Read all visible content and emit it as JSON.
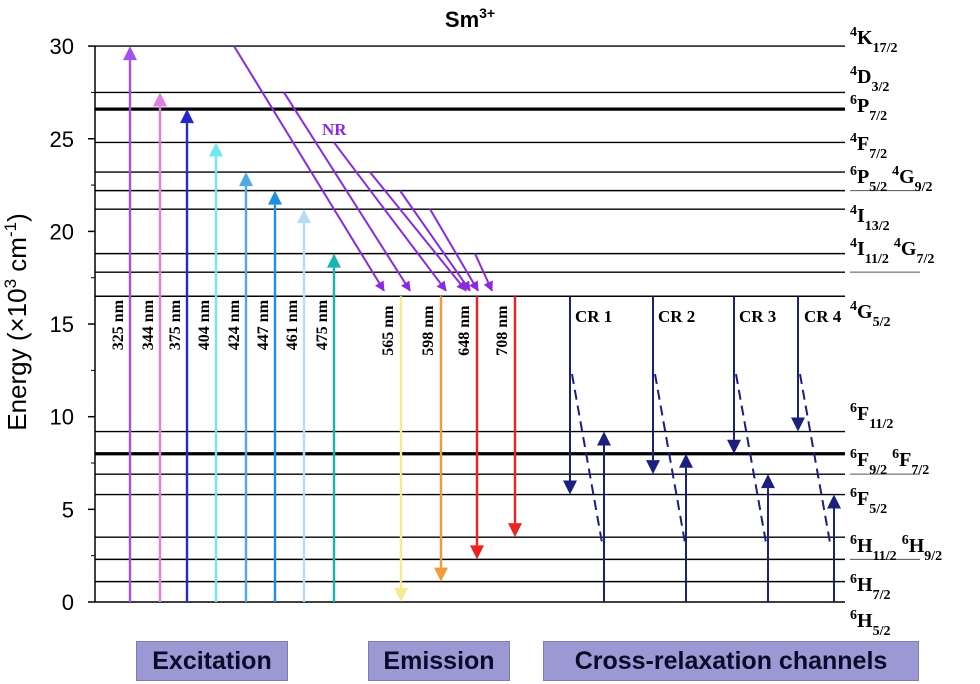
{
  "title": "Sm",
  "title_sup": "3+",
  "y_axis": {
    "label_main": "Energy (×10",
    "label_sup1": "3",
    "label_mid": " cm",
    "label_sup2": "-1",
    "label_end": ")",
    "ticks": [
      "0",
      "5",
      "10",
      "15",
      "20",
      "25",
      "30"
    ],
    "range": [
      0,
      30
    ]
  },
  "levels": [
    {
      "energy": 30.0,
      "bold": false,
      "label": "4K17/2"
    },
    {
      "energy": 27.5,
      "bold": false,
      "label": "4D3/2"
    },
    {
      "energy": 26.6,
      "bold": true,
      "label": "6P7/2"
    },
    {
      "energy": 24.8,
      "bold": false,
      "label": "4F7/2"
    },
    {
      "energy": 23.2,
      "bold": false,
      "label": "6P5/2 4G9/2"
    },
    {
      "energy": 22.2,
      "bold": false,
      "label": ""
    },
    {
      "energy": 21.2,
      "bold": false,
      "label": "4I13/2"
    },
    {
      "energy": 18.8,
      "bold": false,
      "label": "4I11/2 4G7/2"
    },
    {
      "energy": 17.8,
      "bold": false,
      "label": ""
    },
    {
      "energy": 16.5,
      "bold": false,
      "label": "4G5/2"
    },
    {
      "energy": 9.2,
      "bold": false,
      "label": "6F11/2"
    },
    {
      "energy": 8.0,
      "bold": true,
      "label": "6F9/2 6F7/2"
    },
    {
      "energy": 6.9,
      "bold": false,
      "label": ""
    },
    {
      "energy": 5.8,
      "bold": false,
      "label": "6F5/2"
    },
    {
      "energy": 3.5,
      "bold": false,
      "label": "6H11/2 6H9/2"
    },
    {
      "energy": 2.3,
      "bold": false,
      "label": ""
    },
    {
      "energy": 1.1,
      "bold": false,
      "label": "6H7/2"
    },
    {
      "energy": 0.0,
      "bold": false,
      "label": "6H5/2"
    }
  ],
  "level_labels": [
    {
      "sup": "4",
      "base": "K",
      "sub": "17/2",
      "sup2": "",
      "base2": "",
      "sub2": ""
    },
    {
      "sup": "4",
      "base": "D",
      "sub": "3/2",
      "sup2": "",
      "base2": "",
      "sub2": ""
    },
    {
      "sup": "6",
      "base": "P",
      "sub": "7/2",
      "sup2": "",
      "base2": "",
      "sub2": ""
    },
    {
      "sup": "4",
      "base": "F",
      "sub": "7/2",
      "sup2": "",
      "base2": "",
      "sub2": ""
    },
    {
      "sup": "6",
      "base": "P",
      "sub": "5/2",
      "sup2": "4",
      "base2": "G",
      "sub2": "9/2"
    },
    {
      "sup": "4",
      "base": "I",
      "sub": "13/2",
      "sup2": "",
      "base2": "",
      "sub2": ""
    },
    {
      "sup": "4",
      "base": "I",
      "sub": "11/2",
      "sup2": "4",
      "base2": "G",
      "sub2": "7/2"
    },
    {
      "sup": "4",
      "base": "G",
      "sub": "5/2",
      "sup2": "",
      "base2": "",
      "sub2": ""
    },
    {
      "sup": "6",
      "base": "F",
      "sub": "11/2",
      "sup2": "",
      "base2": "",
      "sub2": ""
    },
    {
      "sup": "6",
      "base": "F",
      "sub": "9/2",
      "sup2": "6",
      "base2": "F",
      "sub2": "7/2"
    },
    {
      "sup": "6",
      "base": "F",
      "sub": "5/2",
      "sup2": "",
      "base2": "",
      "sub2": ""
    },
    {
      "sup": "6",
      "base": "H",
      "sub": "11/2",
      "sup2": "6",
      "base2": "H",
      "sub2": "9/2"
    },
    {
      "sup": "6",
      "base": "H",
      "sub": "7/2",
      "sup2": "",
      "base2": "",
      "sub2": ""
    },
    {
      "sup": "6",
      "base": "H",
      "sub": "5/2",
      "sup2": "",
      "base2": "",
      "sub2": ""
    }
  ],
  "excitation": [
    {
      "label": "325 nm",
      "color": "#a64ff0",
      "top": 30.0
    },
    {
      "label": "344 nm",
      "color": "#e27ee0",
      "top": 27.5
    },
    {
      "label": "375 nm",
      "color": "#2626c9",
      "top": 26.6
    },
    {
      "label": "404 nm",
      "color": "#6fe9ec",
      "top": 24.8
    },
    {
      "label": "424 nm",
      "color": "#4fa8e8",
      "top": 23.2
    },
    {
      "label": "447 nm",
      "color": "#1c8fe0",
      "top": 22.2
    },
    {
      "label": "461 nm",
      "color": "#b7dcf6",
      "top": 21.2
    },
    {
      "label": "475 nm",
      "color": "#17b4b4",
      "top": 18.8
    }
  ],
  "emission": [
    {
      "label": "565 nm",
      "color": "#f5ec8f",
      "bottom": 0.0
    },
    {
      "label": "598 nm",
      "color": "#f39a3a",
      "bottom": 1.1
    },
    {
      "label": "648 nm",
      "color": "#f11f1f",
      "bottom": 2.3
    },
    {
      "label": "708 nm",
      "color": "#ea2424",
      "bottom": 3.5
    }
  ],
  "nr_label": "NR",
  "nr_color": "#8a2be2",
  "cr_color": "#1b1f7d",
  "cross_relaxation": [
    {
      "label": "CR 1",
      "down_to": 5.8,
      "up_from": 0.0,
      "up_to": 9.2
    },
    {
      "label": "CR 2",
      "down_to": 6.9,
      "up_from": 0.0,
      "up_to": 8.0
    },
    {
      "label": "CR 3",
      "down_to": 8.0,
      "up_from": 0.0,
      "up_to": 6.9
    },
    {
      "label": "CR 4",
      "down_to": 9.2,
      "up_from": 0.0,
      "up_to": 5.8
    }
  ],
  "sections": {
    "excitation": "Excitation",
    "emission": "Emission",
    "cross_relaxation": "Cross-relaxation channels"
  }
}
